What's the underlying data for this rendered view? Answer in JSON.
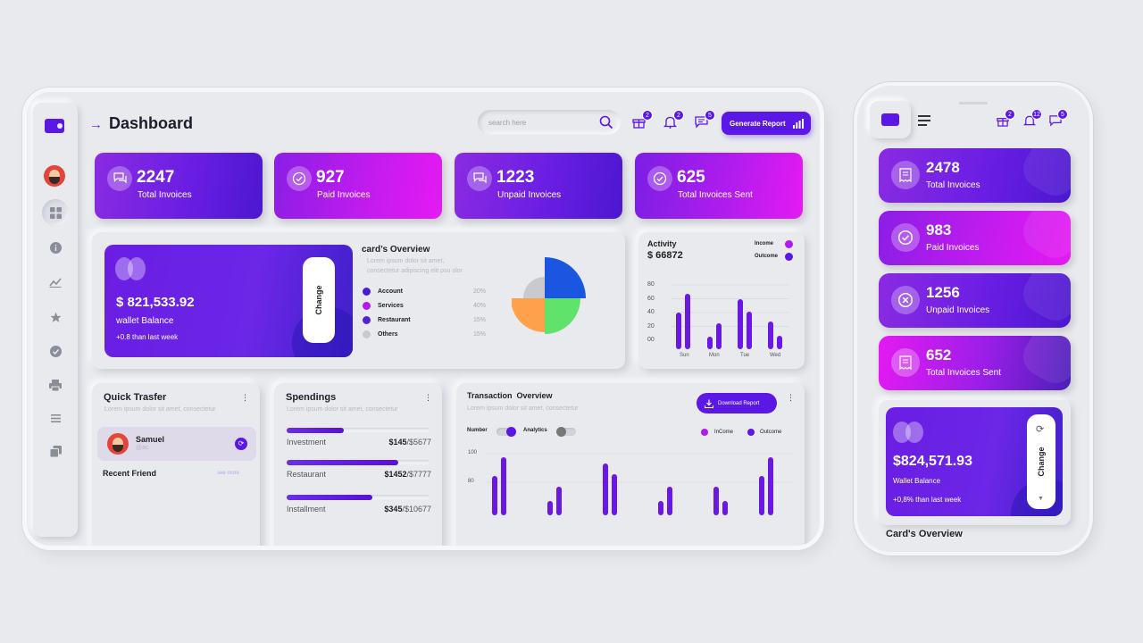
{
  "desktop": {
    "header": {
      "title": "Dashboard",
      "search_placeholder": "search here",
      "badges": {
        "gift": "2",
        "bell": "2",
        "chat": "5"
      },
      "generate_button": "Generate Report"
    },
    "sidebar": {
      "icons": [
        "wallet-icon",
        "avatar",
        "grid-icon",
        "info-icon",
        "trend-icon",
        "star-icon",
        "check-icon",
        "printer-icon",
        "menu-icon",
        "copy-icon"
      ]
    },
    "stats": [
      {
        "value": "2247",
        "label": "Total Invoices",
        "icon": "chat-icon"
      },
      {
        "value": "927",
        "label": "Paid Invoices",
        "icon": "check-icon"
      },
      {
        "value": "1223",
        "label": "Unpaid Invoices",
        "icon": "chat-icon"
      },
      {
        "value": "625",
        "label": "Total Invoices Sent",
        "icon": "check-icon"
      }
    ],
    "wallet": {
      "amount": "$ 821,533.92",
      "label": "wallet Balance",
      "change_text": "+0.8 than last week",
      "change_button": "Change"
    },
    "card_overview": {
      "title": "card’s Overview",
      "desc_line1": "Lorem ipsum dolor sit amet,",
      "desc_line2": "consectetur adipiscing elit psu olor",
      "legend": [
        {
          "label": "Account",
          "value": "20%",
          "color": "#4b1bd1"
        },
        {
          "label": "Services",
          "value": "40%",
          "color": "#b21bf0"
        },
        {
          "label": "Restaurant",
          "value": "15%",
          "color": "#5224c9"
        },
        {
          "label": "Others",
          "value": "15%",
          "color": "#c9cacf"
        }
      ],
      "pie_colors": [
        "#1a56e0",
        "#5fe36a",
        "#ffa04a",
        "#c9cacf"
      ]
    },
    "activity": {
      "title": "Activity",
      "amount": "$ 66872",
      "legend": [
        {
          "label": "Income",
          "color": "#b21bf0"
        },
        {
          "label": "Outcome",
          "color": "#5b17e6"
        }
      ],
      "y_ticks": [
        "80",
        "60",
        "40",
        "20",
        "00"
      ],
      "x_labels": [
        "Sun",
        "Mon",
        "Tue",
        "Wed"
      ]
    },
    "quick_transfer": {
      "title": "Quick Trasfer",
      "desc": "Lorem ipsum dolor sit amet, consectetur",
      "contact_name": "Samuel",
      "contact_handle": "@ac",
      "recent_label": "Recent Friend",
      "see_more": "see more"
    },
    "spendings": {
      "title": "Spendings",
      "desc": "Lorem ipsum dolor sit amet, consectetur",
      "items": [
        {
          "label": "Investment",
          "spent": "$145",
          "total": "/$5677",
          "fill": 0.4
        },
        {
          "label": "Restaurant",
          "spent": "$1452",
          "total": "/$7777",
          "fill": 0.78
        },
        {
          "label": "Installment",
          "spent": "$345",
          "total": "/$10677",
          "fill": 0.6
        }
      ]
    },
    "transaction": {
      "title": "Transaction  Overview",
      "desc": "Lorem ipsum dolor sit amet, consectetur",
      "download_button": "Download Report",
      "toggles": [
        {
          "label": "Number",
          "on": true
        },
        {
          "label": "Analytics",
          "on": false
        }
      ],
      "legend": [
        {
          "label": "InCome",
          "color": "#b21bf0"
        },
        {
          "label": "Outcome",
          "color": "#5b17e6"
        }
      ],
      "y_ticks": [
        "100",
        "80"
      ]
    }
  },
  "mobile": {
    "badges": {
      "gift": "2",
      "bell": "12",
      "chat": "5"
    },
    "stats": [
      {
        "value": "2478",
        "label": "Total Invoices",
        "icon": "receipt-icon"
      },
      {
        "value": "983",
        "label": "Paid Invoices",
        "icon": "check-icon"
      },
      {
        "value": "1256",
        "label": "Unpaid Invoices",
        "icon": "x-icon"
      },
      {
        "value": "652",
        "label": "Total Invoices Sent",
        "icon": "receipt-icon"
      }
    ],
    "wallet": {
      "amount": "$824,571.93",
      "label": "Wallet Balance",
      "change_text": "+0,8% than last week",
      "change_button": "Change"
    },
    "section_title": "Card's Overview"
  },
  "colors": {
    "primary": "#5b17e6",
    "magenta": "#e51af2",
    "background": "#e8eaee"
  }
}
